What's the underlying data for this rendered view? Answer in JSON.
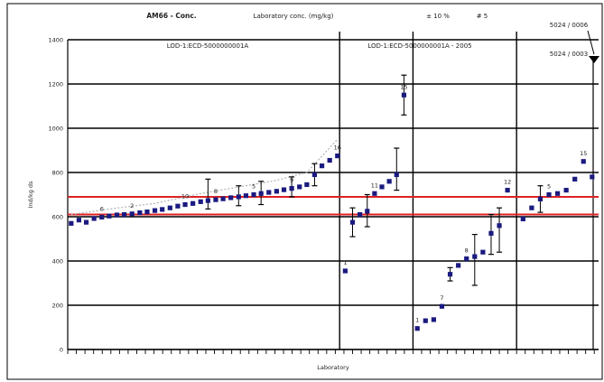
{
  "chart_data": {
    "type": "scatter",
    "title": "AM66 - Conc.",
    "header_texts": [
      "AM66 - Conc.",
      "Laboratory conc. (mg/kg)",
      "± 10 %",
      "# 5"
    ],
    "group_labels": [
      "LOD-1:ECD-5000000001A",
      "LOD-1:ECD-5000000001A - 2005"
    ],
    "annotation_top": "5024 / 0006",
    "annotation_second": "5024 / 0003",
    "xlabel": "Laboratory",
    "ylabel": "Ind/kg ds",
    "ylim": [
      0,
      1400
    ],
    "yticks": [
      0,
      200,
      400,
      600,
      800,
      1000,
      1200,
      1400
    ],
    "xlim": [
      0,
      123
    ],
    "reference_lines": [
      690,
      610
    ],
    "group_dividers": [
      63,
      80,
      104
    ],
    "colors": {
      "points": "#1a1a80",
      "reference": "#dd2222",
      "grid": "#000000",
      "upper_limit": "#b0b0b0"
    },
    "series": [
      {
        "values": [
          {
            "x": 0.8,
            "y": 570
          },
          {
            "x": 2.6,
            "y": 585
          },
          {
            "x": 4.3,
            "y": 575
          },
          {
            "x": 6.1,
            "y": 592
          },
          {
            "x": 7.9,
            "y": 598
          },
          {
            "x": 9.6,
            "y": 603
          },
          {
            "x": 11.4,
            "y": 608
          },
          {
            "x": 13.1,
            "y": 610
          },
          {
            "x": 14.9,
            "y": 613
          },
          {
            "x": 16.7,
            "y": 618
          },
          {
            "x": 18.4,
            "y": 622
          },
          {
            "x": 20.2,
            "y": 628
          },
          {
            "x": 21.9,
            "y": 633
          },
          {
            "x": 23.7,
            "y": 640
          },
          {
            "x": 25.5,
            "y": 648
          },
          {
            "x": 27.2,
            "y": 655
          },
          {
            "x": 29.0,
            "y": 660
          },
          {
            "x": 30.8,
            "y": 668
          },
          {
            "x": 32.5,
            "y": 673
          },
          {
            "x": 34.3,
            "y": 677
          },
          {
            "x": 36.0,
            "y": 681
          },
          {
            "x": 37.8,
            "y": 686
          },
          {
            "x": 39.6,
            "y": 690
          },
          {
            "x": 41.3,
            "y": 695
          },
          {
            "x": 43.1,
            "y": 700
          },
          {
            "x": 44.8,
            "y": 705
          },
          {
            "x": 46.6,
            "y": 710
          },
          {
            "x": 48.4,
            "y": 715
          },
          {
            "x": 50.1,
            "y": 722
          },
          {
            "x": 51.9,
            "y": 728
          },
          {
            "x": 53.7,
            "y": 735
          },
          {
            "x": 55.4,
            "y": 745
          },
          {
            "x": 57.2,
            "y": 790
          },
          {
            "x": 58.9,
            "y": 830
          },
          {
            "x": 60.7,
            "y": 855
          },
          {
            "x": 62.5,
            "y": 875
          },
          {
            "x": 64.3,
            "y": 355
          },
          {
            "x": 66.0,
            "y": 575
          },
          {
            "x": 67.7,
            "y": 610
          },
          {
            "x": 69.4,
            "y": 625
          },
          {
            "x": 71.1,
            "y": 705
          },
          {
            "x": 72.8,
            "y": 735
          },
          {
            "x": 74.5,
            "y": 760
          },
          {
            "x": 76.2,
            "y": 790
          },
          {
            "x": 77.9,
            "y": 1150
          },
          {
            "x": 81.0,
            "y": 95
          },
          {
            "x": 82.9,
            "y": 130
          },
          {
            "x": 84.8,
            "y": 135
          },
          {
            "x": 86.7,
            "y": 195
          },
          {
            "x": 88.6,
            "y": 340
          },
          {
            "x": 90.5,
            "y": 380
          },
          {
            "x": 92.4,
            "y": 410
          },
          {
            "x": 94.3,
            "y": 420
          },
          {
            "x": 96.2,
            "y": 440
          },
          {
            "x": 98.1,
            "y": 525
          },
          {
            "x": 100.0,
            "y": 560
          },
          {
            "x": 101.9,
            "y": 720
          },
          {
            "x": 105.5,
            "y": 590
          },
          {
            "x": 107.5,
            "y": 640
          },
          {
            "x": 109.5,
            "y": 680
          },
          {
            "x": 111.5,
            "y": 700
          },
          {
            "x": 113.5,
            "y": 705
          },
          {
            "x": 115.5,
            "y": 720
          },
          {
            "x": 117.5,
            "y": 770
          },
          {
            "x": 119.5,
            "y": 850
          },
          {
            "x": 121.5,
            "y": 780
          }
        ]
      }
    ],
    "error_bars": [
      {
        "x": 32.5,
        "low": 635,
        "high": 770
      },
      {
        "x": 39.6,
        "low": 650,
        "high": 740
      },
      {
        "x": 44.8,
        "low": 655,
        "high": 760
      },
      {
        "x": 51.9,
        "low": 690,
        "high": 780
      },
      {
        "x": 57.2,
        "low": 740,
        "high": 840
      },
      {
        "x": 66.0,
        "low": 510,
        "high": 640
      },
      {
        "x": 69.4,
        "low": 555,
        "high": 700
      },
      {
        "x": 76.2,
        "low": 720,
        "high": 910
      },
      {
        "x": 77.9,
        "low": 1060,
        "high": 1240
      },
      {
        "x": 88.6,
        "low": 310,
        "high": 370
      },
      {
        "x": 94.3,
        "low": 290,
        "high": 520
      },
      {
        "x": 98.1,
        "low": 430,
        "high": 610
      },
      {
        "x": 100.0,
        "low": 440,
        "high": 640
      },
      {
        "x": 109.5,
        "low": 620,
        "high": 740
      }
    ],
    "upper_limit_line": [
      {
        "x": 0.8,
        "y": 610
      },
      {
        "x": 9.6,
        "y": 635
      },
      {
        "x": 20.2,
        "y": 660
      },
      {
        "x": 30.8,
        "y": 705
      },
      {
        "x": 41.3,
        "y": 740
      },
      {
        "x": 48.4,
        "y": 765
      },
      {
        "x": 55.4,
        "y": 800
      },
      {
        "x": 62.5,
        "y": 950
      }
    ],
    "point_labels": [
      {
        "x": 7.9,
        "y": 598,
        "text": "6"
      },
      {
        "x": 14.9,
        "y": 613,
        "text": "2"
      },
      {
        "x": 27.2,
        "y": 655,
        "text": "10"
      },
      {
        "x": 34.3,
        "y": 677,
        "text": "8"
      },
      {
        "x": 43.1,
        "y": 700,
        "text": "5"
      },
      {
        "x": 51.9,
        "y": 728,
        "text": "9"
      },
      {
        "x": 62.5,
        "y": 875,
        "text": "16"
      },
      {
        "x": 64.3,
        "y": 355,
        "text": "1"
      },
      {
        "x": 71.1,
        "y": 705,
        "text": "11"
      },
      {
        "x": 77.9,
        "y": 1150,
        "text": "15"
      },
      {
        "x": 81.0,
        "y": 95,
        "text": "1"
      },
      {
        "x": 86.7,
        "y": 195,
        "text": "7"
      },
      {
        "x": 92.4,
        "y": 410,
        "text": "8"
      },
      {
        "x": 101.9,
        "y": 720,
        "text": "12"
      },
      {
        "x": 111.5,
        "y": 700,
        "text": "5"
      },
      {
        "x": 119.5,
        "y": 850,
        "text": "15"
      }
    ]
  }
}
